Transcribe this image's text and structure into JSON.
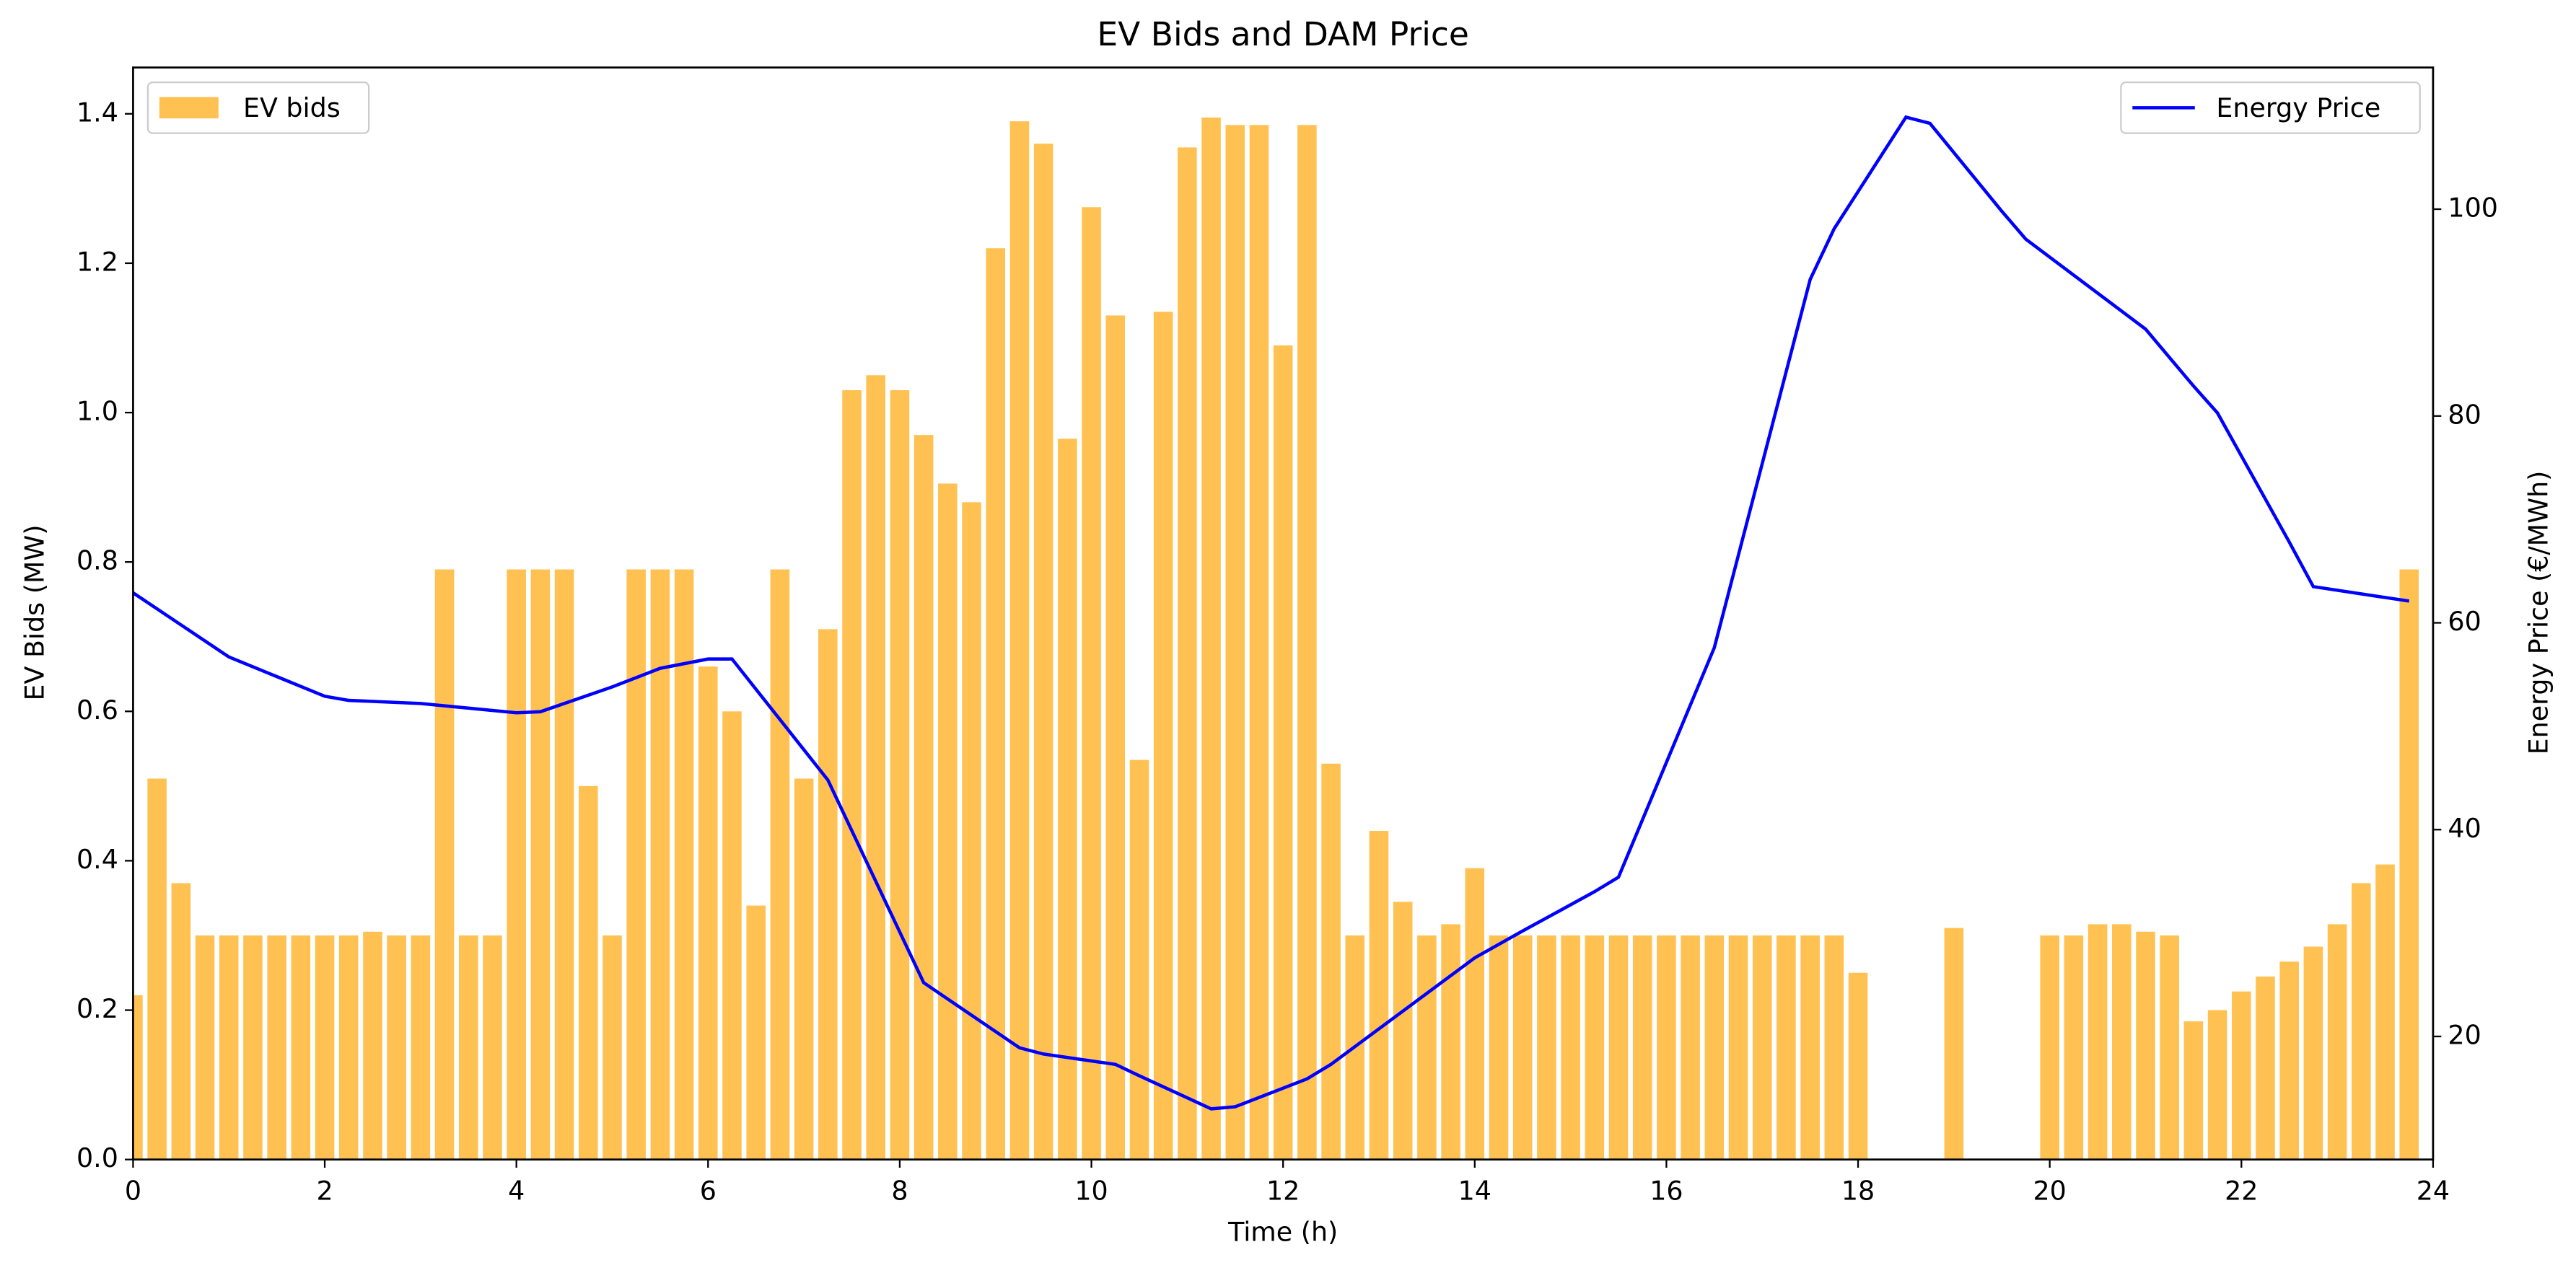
{
  "chart_data": {
    "type": "bar",
    "title": "EV Bids and DAM Price",
    "xlabel": "Time (h)",
    "ylabel": "EV Bids (MW)",
    "y2label": "Energy Price (€/MWh)",
    "y2label_color": "blue",
    "x": [
      0,
      0.25,
      0.5,
      0.75,
      1,
      1.25,
      1.5,
      1.75,
      2,
      2.25,
      2.5,
      2.75,
      3,
      3.25,
      3.5,
      3.75,
      4,
      4.25,
      4.5,
      4.75,
      5,
      5.25,
      5.5,
      5.75,
      6,
      6.25,
      6.5,
      6.75,
      7,
      7.25,
      7.5,
      7.75,
      8,
      8.25,
      8.5,
      8.75,
      9,
      9.25,
      9.5,
      9.75,
      10,
      10.25,
      10.5,
      10.75,
      11,
      11.25,
      11.5,
      11.75,
      12,
      12.25,
      12.5,
      12.75,
      13,
      13.25,
      13.5,
      13.75,
      14,
      14.25,
      14.5,
      14.75,
      15,
      15.25,
      15.5,
      15.75,
      16,
      16.25,
      16.5,
      16.75,
      17,
      17.25,
      17.5,
      17.75,
      18,
      18.25,
      18.5,
      18.75,
      19,
      19.25,
      19.5,
      19.75,
      20,
      20.25,
      20.5,
      20.75,
      21,
      21.25,
      21.5,
      21.75,
      22,
      22.25,
      22.5,
      22.75,
      23,
      23.25,
      23.5,
      23.75
    ],
    "xlim": [
      0,
      24
    ],
    "xticks": [
      0,
      2,
      4,
      6,
      8,
      10,
      12,
      14,
      16,
      18,
      20,
      22,
      24
    ],
    "ylim": [
      0,
      1.462
    ],
    "yticks": [
      {
        "value": 0,
        "label": "0.0"
      },
      0.2,
      0.4,
      0.6,
      0.8,
      {
        "value": 1,
        "label": "1.0"
      },
      1.2,
      1.4
    ],
    "y2lim": [
      8.1,
      113.7
    ],
    "y2ticks": [
      20,
      40,
      60,
      80,
      100
    ],
    "bar_width": 0.2,
    "series": [
      {
        "name": "EV bids",
        "type": "bar",
        "color": "#ffc252",
        "legend": "upper left",
        "values": [
          0.22,
          0.51,
          0.37,
          0.3,
          0.3,
          0.3,
          0.3,
          0.3,
          0.3,
          0.3,
          0.305,
          0.3,
          0.3,
          0.79,
          0.3,
          0.3,
          0.79,
          0.79,
          0.79,
          0.5,
          0.3,
          0.79,
          0.79,
          0.79,
          0.66,
          0.6,
          0.34,
          0.79,
          0.51,
          0.71,
          1.03,
          1.05,
          1.03,
          0.97,
          0.905,
          0.88,
          1.22,
          1.39,
          1.36,
          0.965,
          1.275,
          1.13,
          0.535,
          1.135,
          1.355,
          1.395,
          1.385,
          1.385,
          1.09,
          1.385,
          0.53,
          0.3,
          0.44,
          0.345,
          0.3,
          0.315,
          0.39,
          0.3,
          0.3,
          0.3,
          0.3,
          0.3,
          0.3,
          0.3,
          0.3,
          0.3,
          0.3,
          0.3,
          0.3,
          0.3,
          0.3,
          0.3,
          0.25,
          0,
          0,
          0,
          0.31,
          0,
          0,
          0,
          0.3,
          0.3,
          0.315,
          0.315,
          0.305,
          0.3,
          0.185,
          0.2,
          0.225,
          0.245,
          0.265,
          0.285,
          0.315,
          0.37,
          0.395,
          0.79
        ]
      },
      {
        "name": "Energy Price",
        "type": "line",
        "axis": "y2",
        "color": "blue",
        "legend": "upper right",
        "x": [
          0,
          1,
          2,
          2.25,
          3,
          4,
          4.25,
          5,
          5.5,
          6,
          6.25,
          7.25,
          8.25,
          9.25,
          9.5,
          10.25,
          10.5,
          11.25,
          11.5,
          12.25,
          12.5,
          14,
          14.5,
          15.25,
          15.5,
          16.5,
          17.5,
          17.75,
          18.5,
          18.75,
          19.5,
          19.75,
          21,
          21.5,
          21.75,
          22.5,
          22.75,
          23.75
        ],
        "values": [
          62.9,
          56.7,
          52.9,
          52.5,
          52.2,
          51.3,
          51.4,
          53.8,
          55.6,
          56.5,
          56.5,
          44.8,
          25.2,
          18.9,
          18.3,
          17.3,
          16.2,
          13.0,
          13.2,
          15.9,
          17.3,
          27.6,
          30.2,
          34.0,
          35.4,
          57.6,
          93.2,
          98.1,
          108.9,
          108.3,
          99.8,
          97.1,
          88.4,
          82.9,
          80.3,
          67.8,
          63.5,
          62.1
        ]
      }
    ]
  }
}
